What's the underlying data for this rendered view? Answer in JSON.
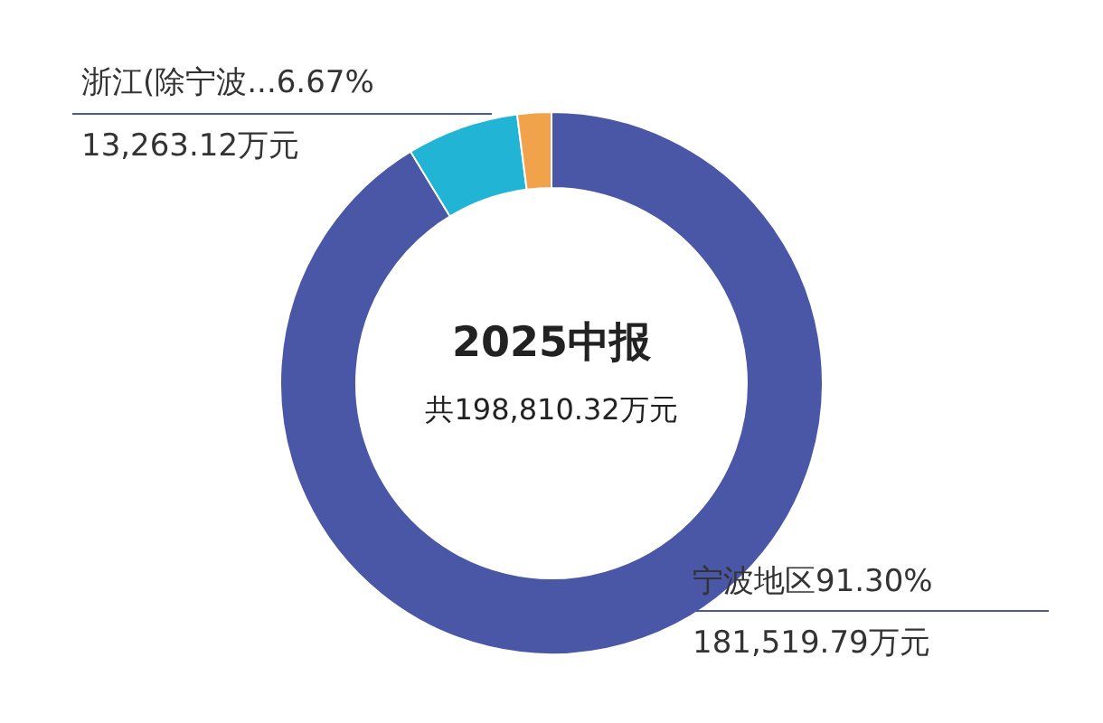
{
  "chart_data": {
    "type": "donut",
    "title": "2025中报",
    "subtitle": "共198,810.32万元",
    "categories": [
      "宁波地区",
      "浙江(除宁波...",
      null
    ],
    "values": [
      181519.79,
      13263.12,
      4027.41
    ],
    "colors": [
      "#4a56a6",
      "#22b4d4",
      "#f2a24a"
    ],
    "value_labels": [
      "181,519.79万元",
      "13,263.12万元",
      null
    ],
    "annotations": [
      "91.30%",
      "6.67%"
    ]
  }
}
